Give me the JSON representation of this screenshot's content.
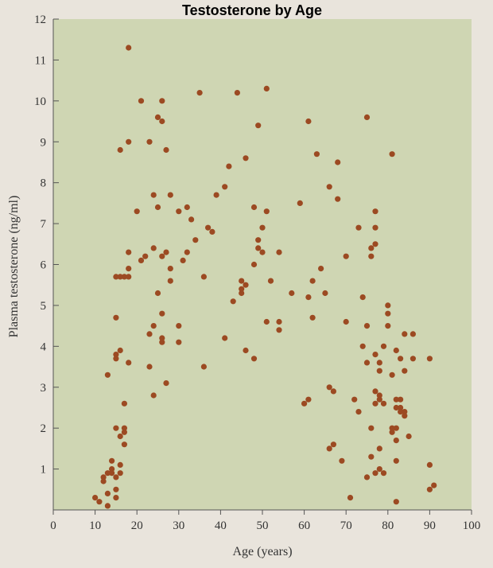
{
  "chart_data": {
    "type": "scatter",
    "title": "Testosterone by Age",
    "xlabel": "Age (years)",
    "ylabel": "Plasma testosterone (ng/ml)",
    "xlim": [
      0,
      100
    ],
    "ylim": [
      0,
      12
    ],
    "xticks": [
      0,
      10,
      20,
      30,
      40,
      50,
      60,
      70,
      80,
      90,
      100
    ],
    "yticks": [
      1,
      2,
      3,
      4,
      5,
      6,
      7,
      8,
      9,
      10,
      11,
      12
    ],
    "grid": false,
    "colors": {
      "plot_background": "#cfd6b3",
      "point": "#9c4a22",
      "axis": "#555555"
    },
    "series": [
      {
        "values": [
          [
            10,
            0.3
          ],
          [
            11,
            0.2
          ],
          [
            12,
            0.7
          ],
          [
            12,
            0.8
          ],
          [
            13,
            0.4
          ],
          [
            13,
            0.1
          ],
          [
            13,
            0.9
          ],
          [
            14,
            1.0
          ],
          [
            14,
            1.2
          ],
          [
            14,
            0.9
          ],
          [
            15,
            0.8
          ],
          [
            15,
            0.3
          ],
          [
            15,
            0.5
          ],
          [
            15,
            2.0
          ],
          [
            16,
            1.8
          ],
          [
            16,
            1.1
          ],
          [
            16,
            0.9
          ],
          [
            17,
            2.0
          ],
          [
            17,
            1.6
          ],
          [
            17,
            2.6
          ],
          [
            17,
            1.9
          ],
          [
            13,
            3.3
          ],
          [
            15,
            3.7
          ],
          [
            15,
            3.8
          ],
          [
            16,
            3.9
          ],
          [
            18,
            3.6
          ],
          [
            15,
            4.7
          ],
          [
            15,
            5.7
          ],
          [
            16,
            5.7
          ],
          [
            17,
            5.7
          ],
          [
            18,
            5.7
          ],
          [
            18,
            5.9
          ],
          [
            18,
            6.3
          ],
          [
            16,
            8.8
          ],
          [
            18,
            9.0
          ],
          [
            18,
            11.3
          ],
          [
            20,
            7.3
          ],
          [
            21,
            6.1
          ],
          [
            21,
            10.0
          ],
          [
            22,
            6.2
          ],
          [
            23,
            4.3
          ],
          [
            23,
            3.5
          ],
          [
            23,
            9.0
          ],
          [
            24,
            7.7
          ],
          [
            24,
            6.4
          ],
          [
            24,
            2.8
          ],
          [
            24,
            4.5
          ],
          [
            25,
            7.4
          ],
          [
            25,
            5.3
          ],
          [
            25,
            9.6
          ],
          [
            26,
            6.2
          ],
          [
            26,
            4.2
          ],
          [
            26,
            4.1
          ],
          [
            26,
            4.8
          ],
          [
            26,
            10.0
          ],
          [
            26,
            9.5
          ],
          [
            27,
            3.1
          ],
          [
            27,
            6.3
          ],
          [
            27,
            8.8
          ],
          [
            28,
            7.7
          ],
          [
            28,
            5.9
          ],
          [
            28,
            5.6
          ],
          [
            30,
            7.3
          ],
          [
            30,
            4.5
          ],
          [
            30,
            4.1
          ],
          [
            31,
            6.1
          ],
          [
            32,
            7.4
          ],
          [
            32,
            6.3
          ],
          [
            33,
            7.1
          ],
          [
            34,
            6.6
          ],
          [
            35,
            10.2
          ],
          [
            36,
            5.7
          ],
          [
            36,
            3.5
          ],
          [
            37,
            6.9
          ],
          [
            38,
            6.8
          ],
          [
            39,
            7.7
          ],
          [
            41,
            7.9
          ],
          [
            41,
            4.2
          ],
          [
            42,
            8.4
          ],
          [
            43,
            5.1
          ],
          [
            44,
            10.2
          ],
          [
            45,
            5.4
          ],
          [
            45,
            5.3
          ],
          [
            45,
            5.6
          ],
          [
            46,
            8.6
          ],
          [
            46,
            3.9
          ],
          [
            46,
            5.5
          ],
          [
            48,
            6.0
          ],
          [
            48,
            3.7
          ],
          [
            48,
            7.4
          ],
          [
            49,
            6.6
          ],
          [
            49,
            6.4
          ],
          [
            49,
            9.4
          ],
          [
            50,
            6.3
          ],
          [
            50,
            6.9
          ],
          [
            51,
            7.3
          ],
          [
            51,
            4.6
          ],
          [
            51,
            10.3
          ],
          [
            52,
            5.6
          ],
          [
            54,
            6.3
          ],
          [
            54,
            4.6
          ],
          [
            54,
            4.4
          ],
          [
            57,
            5.3
          ],
          [
            59,
            7.5
          ],
          [
            60,
            2.6
          ],
          [
            61,
            2.7
          ],
          [
            61,
            9.5
          ],
          [
            61,
            5.2
          ],
          [
            62,
            4.7
          ],
          [
            62,
            5.6
          ],
          [
            63,
            8.7
          ],
          [
            64,
            5.9
          ],
          [
            65,
            5.3
          ],
          [
            66,
            7.9
          ],
          [
            66,
            3.0
          ],
          [
            66,
            1.5
          ],
          [
            67,
            2.9
          ],
          [
            67,
            1.6
          ],
          [
            68,
            7.6
          ],
          [
            68,
            8.5
          ],
          [
            69,
            1.2
          ],
          [
            70,
            6.2
          ],
          [
            70,
            4.6
          ],
          [
            71,
            0.3
          ],
          [
            72,
            2.7
          ],
          [
            73,
            6.9
          ],
          [
            73,
            2.4
          ],
          [
            74,
            5.2
          ],
          [
            74,
            4.0
          ],
          [
            75,
            4.5
          ],
          [
            75,
            3.6
          ],
          [
            75,
            0.8
          ],
          [
            75,
            9.6
          ],
          [
            76,
            2.0
          ],
          [
            76,
            1.3
          ],
          [
            76,
            6.4
          ],
          [
            76,
            6.2
          ],
          [
            77,
            7.3
          ],
          [
            77,
            6.5
          ],
          [
            77,
            6.9
          ],
          [
            77,
            3.8
          ],
          [
            77,
            2.9
          ],
          [
            77,
            2.6
          ],
          [
            77,
            0.9
          ],
          [
            78,
            3.6
          ],
          [
            78,
            3.4
          ],
          [
            78,
            2.7
          ],
          [
            78,
            2.8
          ],
          [
            78,
            1.5
          ],
          [
            78,
            1.0
          ],
          [
            79,
            0.9
          ],
          [
            79,
            2.6
          ],
          [
            79,
            4.0
          ],
          [
            80,
            5.0
          ],
          [
            80,
            4.8
          ],
          [
            80,
            4.5
          ],
          [
            81,
            3.3
          ],
          [
            81,
            1.9
          ],
          [
            81,
            2.0
          ],
          [
            81,
            8.7
          ],
          [
            82,
            3.9
          ],
          [
            82,
            2.7
          ],
          [
            82,
            2.5
          ],
          [
            82,
            2.0
          ],
          [
            82,
            1.7
          ],
          [
            82,
            1.2
          ],
          [
            82,
            0.2
          ],
          [
            83,
            3.7
          ],
          [
            83,
            2.7
          ],
          [
            83,
            2.5
          ],
          [
            83,
            2.4
          ],
          [
            84,
            3.4
          ],
          [
            84,
            4.3
          ],
          [
            84,
            2.4
          ],
          [
            84,
            2.3
          ],
          [
            85,
            1.8
          ],
          [
            86,
            3.7
          ],
          [
            86,
            4.3
          ],
          [
            90,
            3.7
          ],
          [
            90,
            1.1
          ],
          [
            90,
            0.5
          ],
          [
            91,
            0.6
          ]
        ]
      }
    ]
  }
}
